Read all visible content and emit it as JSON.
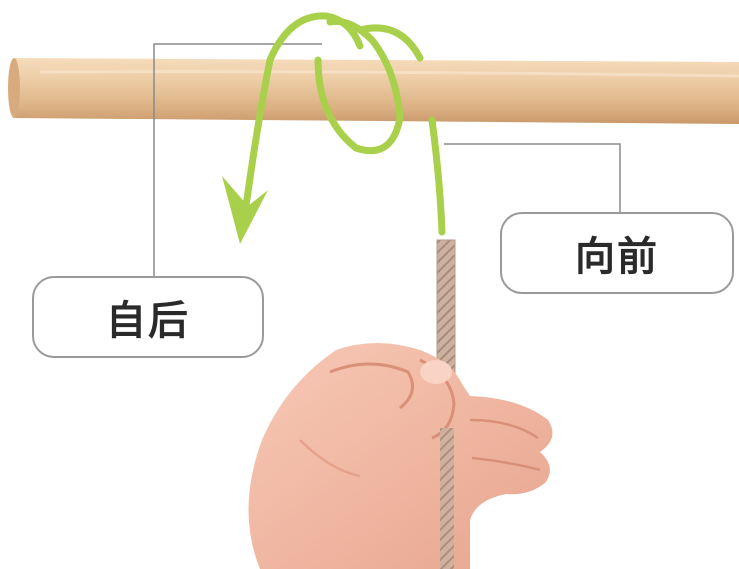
{
  "labels": {
    "front": "向前",
    "back": "自后"
  },
  "colors": {
    "pole": "#e8c49a",
    "rope_path": "#a8d04a",
    "rope_real": "#c9ac9a",
    "skin": "#f2b9a5",
    "leader_line": "#8a8a8a"
  }
}
